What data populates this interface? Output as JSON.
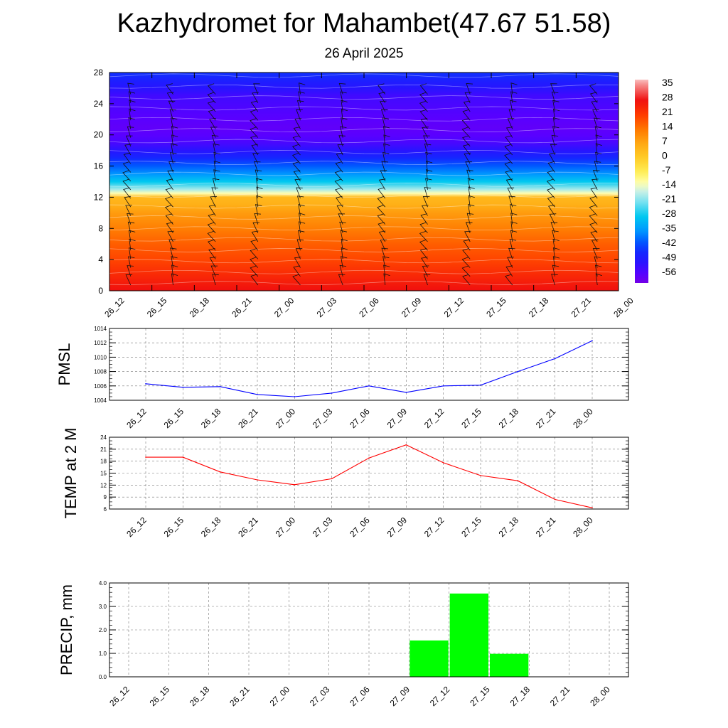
{
  "title": "Kazhydromet for Mahambet(47.67 51.58)",
  "subtitle": "26 April 2025",
  "time_labels": [
    "26_12",
    "26_15",
    "26_18",
    "26_21",
    "27_00",
    "27_03",
    "27_06",
    "27_09",
    "27_12",
    "27_15",
    "27_18",
    "27_21",
    "28_00"
  ],
  "chart_data": [
    {
      "type": "heatmap",
      "description_of_axes": "",
      "x": [
        "26_12",
        "26_15",
        "26_18",
        "26_21",
        "27_00",
        "27_03",
        "27_06",
        "27_09",
        "27_12",
        "27_15",
        "27_18",
        "27_21",
        "28_00"
      ],
      "y_ticks": [
        0,
        4,
        8,
        12,
        16,
        20,
        24,
        28
      ],
      "ylim": [
        0,
        28
      ],
      "colorbar": {
        "labels": [
          "35",
          "28",
          "21",
          "14",
          "7",
          "0",
          "-7",
          "-14",
          "-21",
          "-28",
          "-35",
          "-42",
          "-49",
          "-56"
        ],
        "range": [
          -60,
          38
        ]
      },
      "temperature_profile": {
        "levels": [
          0,
          2,
          4,
          6,
          8,
          10,
          11,
          12,
          12.5,
          13,
          14,
          15,
          16,
          17,
          18,
          19,
          20,
          21,
          22,
          23,
          24,
          25,
          26,
          27,
          28
        ],
        "values": [
          28,
          24,
          20,
          17,
          13,
          9,
          6,
          4,
          -12,
          -18,
          -28,
          -35,
          -40,
          -45,
          -50,
          -54,
          -56,
          -57,
          -56,
          -55,
          -54,
          -53,
          -50,
          -47,
          -44
        ]
      },
      "wind_barbs": true,
      "grid": false
    },
    {
      "type": "line",
      "ylabel": "PMSL",
      "categories": [
        "26_12",
        "26_15",
        "26_18",
        "26_21",
        "27_00",
        "27_03",
        "27_06",
        "27_09",
        "27_12",
        "27_15",
        "27_18",
        "27_21",
        "28_00"
      ],
      "values": [
        1006.3,
        1005.8,
        1005.9,
        1004.8,
        1004.5,
        1005.0,
        1006.0,
        1005.1,
        1006.0,
        1006.1,
        1008.0,
        1009.8,
        1012.3
      ],
      "ylim": [
        1004,
        1014
      ],
      "yticks": [
        "1004",
        "1006",
        "1008",
        "1010",
        "1012",
        "1014"
      ],
      "color": "#0000ff",
      "grid": true
    },
    {
      "type": "line",
      "ylabel": "TEMP at 2 M",
      "categories": [
        "26_12",
        "26_15",
        "26_18",
        "26_21",
        "27_00",
        "27_03",
        "27_06",
        "27_09",
        "27_12",
        "27_15",
        "27_18",
        "27_21",
        "28_00"
      ],
      "values": [
        19.0,
        19.0,
        15.3,
        13.3,
        12.1,
        13.6,
        18.8,
        22.1,
        17.6,
        14.4,
        13.1,
        8.4,
        6.3
      ],
      "ylim": [
        6,
        24
      ],
      "yticks": [
        "6",
        "9",
        "12",
        "15",
        "18",
        "21",
        "24"
      ],
      "color": "#ff0000",
      "grid": true
    },
    {
      "type": "bar",
      "ylabel": "PRECIP, mm",
      "categories": [
        "26_12",
        "26_15",
        "26_18",
        "26_21",
        "27_00",
        "27_03",
        "27_06",
        "27_09",
        "27_12",
        "27_15",
        "27_18",
        "27_21",
        "28_00"
      ],
      "values": [
        0,
        0,
        0,
        0,
        0,
        0,
        0,
        0,
        1.55,
        3.55,
        0.98,
        0,
        0
      ],
      "ylim": [
        0,
        4
      ],
      "yticks": [
        "0.0",
        "1.0",
        "2.0",
        "3.0",
        "4.0"
      ],
      "color": "#00ff00",
      "grid": true
    }
  ]
}
